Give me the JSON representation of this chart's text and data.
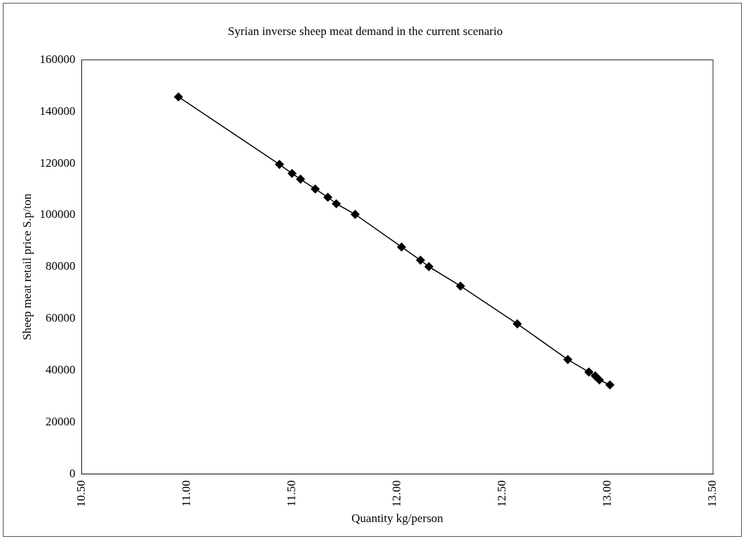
{
  "chart_data": {
    "type": "line",
    "title": "Syrian inverse sheep meat demand in the current scenario",
    "xlabel": "Quantity kg/person",
    "ylabel": "Sheep meat retail price S.p/ton",
    "x": [
      10.96,
      11.44,
      11.5,
      11.54,
      11.61,
      11.67,
      11.71,
      11.8,
      12.02,
      12.11,
      12.15,
      12.3,
      12.57,
      12.81,
      12.91,
      12.94,
      12.96,
      13.01
    ],
    "series": [
      {
        "color": "#000000",
        "values": [
          145700,
          119600,
          116100,
          113900,
          110100,
          106900,
          104400,
          100300,
          87700,
          82600,
          80100,
          72600,
          58000,
          44200,
          39400,
          37900,
          36300,
          34400
        ]
      }
    ],
    "xlim": [
      10.5,
      13.5
    ],
    "xticks": [
      {
        "value": 10.5,
        "label": "10.50"
      },
      {
        "value": 11,
        "label": "11.00"
      },
      {
        "value": 11.5,
        "label": "11.50"
      },
      {
        "value": 12,
        "label": "12.00"
      },
      {
        "value": 12.5,
        "label": "12.50"
      },
      {
        "value": 13,
        "label": "13.00"
      },
      {
        "value": 13.5,
        "label": "13.50"
      }
    ],
    "ylim": [
      0,
      160000
    ],
    "yticks": [
      0,
      20000,
      40000,
      60000,
      80000,
      100000,
      120000,
      140000,
      160000
    ],
    "marker": "diamond",
    "line_style": "solid",
    "grid": false,
    "legend": false
  }
}
